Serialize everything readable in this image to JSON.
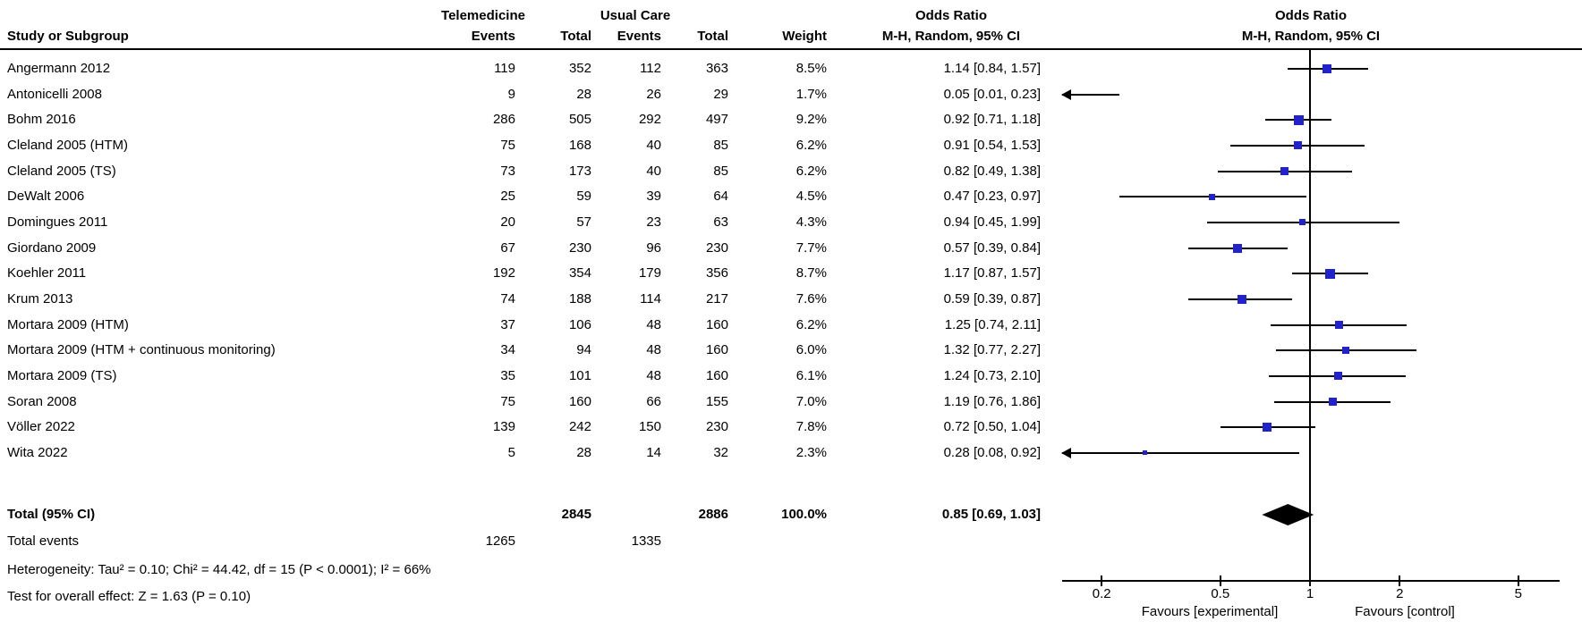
{
  "header": {
    "study_col": "Study or Subgroup",
    "group1": "Telemedicine",
    "group2": "Usual Care",
    "events_col": "Events",
    "total_col": "Total",
    "weight_col": "Weight",
    "or_title": "Odds Ratio",
    "or_subtitle": "M-H, Random, 95% CI",
    "or_plot_title": "Odds Ratio",
    "or_plot_subtitle": "M-H, Random, 95% CI"
  },
  "footer": {
    "heterogeneity": "Heterogeneity: Tau² = 0.10; Chi² = 44.42, df = 15 (P < 0.0001); I² = 66%",
    "overall_effect": "Test for overall effect: Z = 1.63 (P = 0.10)"
  },
  "colors": {
    "marker_blue": "#2222cc",
    "line_black": "#000000"
  },
  "chart_data": {
    "type": "forest",
    "effect_measure": "Odds Ratio",
    "method": "M-H, Random, 95% CI",
    "x_scale": "log",
    "axis_ticks": [
      0.2,
      0.5,
      1,
      2,
      5
    ],
    "axis_range": [
      0.147,
      6.9
    ],
    "favours_left": "Favours [experimental]",
    "favours_right": "Favours [control]",
    "studies": [
      {
        "name": "Angermann 2012",
        "e1": "119",
        "t1": "352",
        "e2": "112",
        "t2": "363",
        "weight": "8.5%",
        "w": 8.5,
        "or": 1.14,
        "lo": 0.84,
        "hi": 1.57,
        "or_label": "1.14 [0.84, 1.57]"
      },
      {
        "name": "Antonicelli 2008",
        "e1": "9",
        "t1": "28",
        "e2": "26",
        "t2": "29",
        "weight": "1.7%",
        "w": 1.7,
        "or": 0.05,
        "lo": 0.01,
        "hi": 0.23,
        "or_label": "0.05 [0.01, 0.23]"
      },
      {
        "name": "Bohm 2016",
        "e1": "286",
        "t1": "505",
        "e2": "292",
        "t2": "497",
        "weight": "9.2%",
        "w": 9.2,
        "or": 0.92,
        "lo": 0.71,
        "hi": 1.18,
        "or_label": "0.92 [0.71, 1.18]"
      },
      {
        "name": "Cleland 2005 (HTM)",
        "e1": "75",
        "t1": "168",
        "e2": "40",
        "t2": "85",
        "weight": "6.2%",
        "w": 6.2,
        "or": 0.91,
        "lo": 0.54,
        "hi": 1.53,
        "or_label": "0.91 [0.54, 1.53]"
      },
      {
        "name": "Cleland 2005 (TS)",
        "e1": "73",
        "t1": "173",
        "e2": "40",
        "t2": "85",
        "weight": "6.2%",
        "w": 6.2,
        "or": 0.82,
        "lo": 0.49,
        "hi": 1.38,
        "or_label": "0.82 [0.49, 1.38]"
      },
      {
        "name": "DeWalt 2006",
        "e1": "25",
        "t1": "59",
        "e2": "39",
        "t2": "64",
        "weight": "4.5%",
        "w": 4.5,
        "or": 0.47,
        "lo": 0.23,
        "hi": 0.97,
        "or_label": "0.47 [0.23, 0.97]"
      },
      {
        "name": "Domingues 2011",
        "e1": "20",
        "t1": "57",
        "e2": "23",
        "t2": "63",
        "weight": "4.3%",
        "w": 4.3,
        "or": 0.94,
        "lo": 0.45,
        "hi": 1.99,
        "or_label": "0.94 [0.45, 1.99]"
      },
      {
        "name": "Giordano 2009",
        "e1": "67",
        "t1": "230",
        "e2": "96",
        "t2": "230",
        "weight": "7.7%",
        "w": 7.7,
        "or": 0.57,
        "lo": 0.39,
        "hi": 0.84,
        "or_label": "0.57 [0.39, 0.84]"
      },
      {
        "name": "Koehler 2011",
        "e1": "192",
        "t1": "354",
        "e2": "179",
        "t2": "356",
        "weight": "8.7%",
        "w": 8.7,
        "or": 1.17,
        "lo": 0.87,
        "hi": 1.57,
        "or_label": "1.17 [0.87, 1.57]"
      },
      {
        "name": "Krum 2013",
        "e1": "74",
        "t1": "188",
        "e2": "114",
        "t2": "217",
        "weight": "7.6%",
        "w": 7.6,
        "or": 0.59,
        "lo": 0.39,
        "hi": 0.87,
        "or_label": "0.59 [0.39, 0.87]"
      },
      {
        "name": "Mortara 2009 (HTM)",
        "e1": "37",
        "t1": "106",
        "e2": "48",
        "t2": "160",
        "weight": "6.2%",
        "w": 6.2,
        "or": 1.25,
        "lo": 0.74,
        "hi": 2.11,
        "or_label": "1.25 [0.74, 2.11]"
      },
      {
        "name": "Mortara 2009 (HTM + continuous monitoring)",
        "e1": "34",
        "t1": "94",
        "e2": "48",
        "t2": "160",
        "weight": "6.0%",
        "w": 6.0,
        "or": 1.32,
        "lo": 0.77,
        "hi": 2.27,
        "or_label": "1.32 [0.77, 2.27]"
      },
      {
        "name": "Mortara 2009 (TS)",
        "e1": "35",
        "t1": "101",
        "e2": "48",
        "t2": "160",
        "weight": "6.1%",
        "w": 6.1,
        "or": 1.24,
        "lo": 0.73,
        "hi": 2.1,
        "or_label": "1.24 [0.73, 2.10]"
      },
      {
        "name": "Soran 2008",
        "e1": "75",
        "t1": "160",
        "e2": "66",
        "t2": "155",
        "weight": "7.0%",
        "w": 7.0,
        "or": 1.19,
        "lo": 0.76,
        "hi": 1.86,
        "or_label": "1.19 [0.76, 1.86]"
      },
      {
        "name": "Völler 2022",
        "e1": "139",
        "t1": "242",
        "e2": "150",
        "t2": "230",
        "weight": "7.8%",
        "w": 7.8,
        "or": 0.72,
        "lo": 0.5,
        "hi": 1.04,
        "or_label": "0.72 [0.50, 1.04]"
      },
      {
        "name": "Wita 2022",
        "e1": "5",
        "t1": "28",
        "e2": "14",
        "t2": "32",
        "weight": "2.3%",
        "w": 2.3,
        "or": 0.28,
        "lo": 0.08,
        "hi": 0.92,
        "or_label": "0.28 [0.08, 0.92]"
      }
    ],
    "total": {
      "label": "Total (95% CI)",
      "t1": "2845",
      "t2": "2886",
      "weight": "100.0%",
      "or": 0.85,
      "lo": 0.69,
      "hi": 1.03,
      "or_label": "0.85 [0.69, 1.03]",
      "events_label": "Total events",
      "e1": "1265",
      "e2": "1335"
    }
  }
}
